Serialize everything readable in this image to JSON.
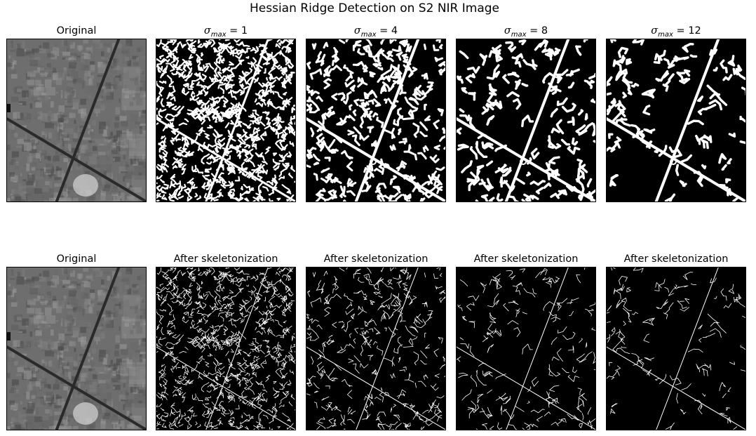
{
  "figure": {
    "title": "Hessian Ridge Detection on S2 NIR Image"
  },
  "rows": [
    {
      "panels": [
        {
          "kind": "original",
          "title": "Original",
          "sigma": null
        },
        {
          "kind": "mask",
          "title_prefix": "σ",
          "title_sub": "max",
          "title_eq": " = ",
          "title_val": "1",
          "sigma": 1
        },
        {
          "kind": "mask",
          "title_prefix": "σ",
          "title_sub": "max",
          "title_eq": " = ",
          "title_val": "4",
          "sigma": 4
        },
        {
          "kind": "mask",
          "title_prefix": "σ",
          "title_sub": "max",
          "title_eq": " = ",
          "title_val": "8",
          "sigma": 8
        },
        {
          "kind": "mask",
          "title_prefix": "σ",
          "title_sub": "max",
          "title_eq": " = ",
          "title_val": "12",
          "sigma": 12
        }
      ]
    },
    {
      "panels": [
        {
          "kind": "original",
          "title": "Original",
          "sigma": null
        },
        {
          "kind": "skeleton",
          "title": "After skeletonization",
          "sigma": 1
        },
        {
          "kind": "skeleton",
          "title": "After skeletonization",
          "sigma": 4
        },
        {
          "kind": "skeleton",
          "title": "After skeletonization",
          "sigma": 8
        },
        {
          "kind": "skeleton",
          "title": "After skeletonization",
          "sigma": 12
        }
      ]
    }
  ],
  "colors": {
    "background": "#000000",
    "foreground": "#ffffff",
    "original_base": "#6e6e6e"
  }
}
